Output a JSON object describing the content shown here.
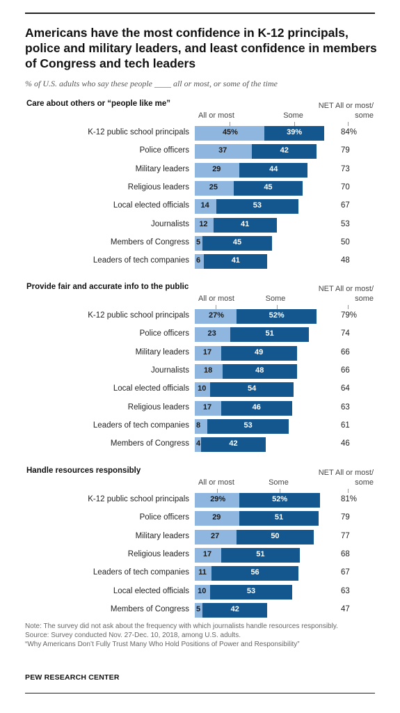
{
  "title": "Americans have the most confidence in K-12 principals, police and military leaders, and least confidence in members of Congress and tech leaders",
  "subtitle": "% of U.S. adults who say these people ____ all or most, or some of the time",
  "colors": {
    "all_or_most": "#8fb6de",
    "some": "#14578f"
  },
  "chart_data": [
    {
      "type": "bar",
      "stacked": true,
      "orientation": "horizontal",
      "title": "Care about others or “people like me”",
      "legend": {
        "all_or_most": "All or most",
        "some": "Some",
        "net": "NET All or most/ some"
      },
      "categories": [
        "K-12 public school principals",
        "Police officers",
        "Military leaders",
        "Religious leaders",
        "Local elected officials",
        "Journalists",
        "Members of Congress",
        "Leaders of tech companies"
      ],
      "series": [
        {
          "name": "All or most",
          "values": [
            45,
            37,
            29,
            25,
            14,
            12,
            5,
            6
          ]
        },
        {
          "name": "Some",
          "values": [
            39,
            42,
            44,
            45,
            53,
            41,
            45,
            41
          ]
        }
      ],
      "net": [
        84,
        79,
        73,
        70,
        67,
        53,
        50,
        48
      ]
    },
    {
      "type": "bar",
      "stacked": true,
      "orientation": "horizontal",
      "title": "Provide fair and accurate info to the public",
      "legend": {
        "all_or_most": "All or most",
        "some": "Some",
        "net": "NET All or most/ some"
      },
      "categories": [
        "K-12 public school principals",
        "Police officers",
        "Military leaders",
        "Journalists",
        "Local elected officials",
        "Religious leaders",
        "Leaders of tech companies",
        "Members of Congress"
      ],
      "series": [
        {
          "name": "All or most",
          "values": [
            27,
            23,
            17,
            18,
            10,
            17,
            8,
            4
          ]
        },
        {
          "name": "Some",
          "values": [
            52,
            51,
            49,
            48,
            54,
            46,
            53,
            42
          ]
        }
      ],
      "net": [
        79,
        74,
        66,
        66,
        64,
        63,
        61,
        46
      ]
    },
    {
      "type": "bar",
      "stacked": true,
      "orientation": "horizontal",
      "title": "Handle resources responsibly",
      "legend": {
        "all_or_most": "All or most",
        "some": "Some",
        "net": "NET All or most/ some"
      },
      "categories": [
        "K-12 public school principals",
        "Police officers",
        "Military leaders",
        "Religious leaders",
        "Leaders of tech companies",
        "Local elected officials",
        "Members of Congress"
      ],
      "series": [
        {
          "name": "All or most",
          "values": [
            29,
            29,
            27,
            17,
            11,
            10,
            5
          ]
        },
        {
          "name": "Some",
          "values": [
            52,
            51,
            50,
            51,
            56,
            53,
            42
          ]
        }
      ],
      "net": [
        81,
        79,
        77,
        68,
        67,
        63,
        47
      ]
    }
  ],
  "note": "Note: The survey did not ask about the frequency with which journalists handle resources responsibly.",
  "source": "Source: Survey conducted Nov. 27-Dec. 10, 2018, among U.S. adults.",
  "report": "“Why Americans Don’t Fully Trust Many Who Hold Positions of Power and Responsibility”",
  "brand": "PEW RESEARCH CENTER"
}
